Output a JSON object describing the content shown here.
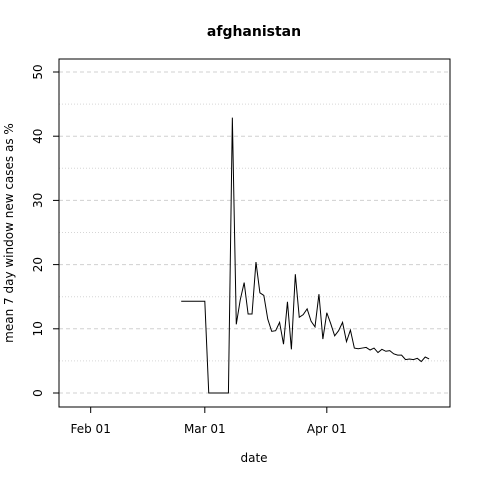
{
  "chart_data": {
    "type": "line",
    "title": "afghanistan",
    "xlabel": "date",
    "ylabel": "mean  7  day window new cases as %",
    "xlim": [
      "2020-01-27",
      "2020-04-29"
    ],
    "ylim": [
      0,
      50
    ],
    "x_ticks": [
      {
        "date": "2020-02-01",
        "label": "Feb 01"
      },
      {
        "date": "2020-03-01",
        "label": "Mar 01"
      },
      {
        "date": "2020-04-01",
        "label": "Apr 01"
      }
    ],
    "y_ticks": [
      0,
      10,
      20,
      30,
      40,
      50
    ],
    "y_minor_ticks": [
      5,
      15,
      25,
      35,
      45
    ],
    "grid": true,
    "series": [
      {
        "x": [
          "2020-02-24",
          "2020-02-25",
          "2020-02-26",
          "2020-02-27",
          "2020-02-28",
          "2020-02-29",
          "2020-03-01",
          "2020-03-02",
          "2020-03-03",
          "2020-03-04",
          "2020-03-05",
          "2020-03-06",
          "2020-03-07",
          "2020-03-08",
          "2020-03-09",
          "2020-03-10",
          "2020-03-11",
          "2020-03-12",
          "2020-03-13",
          "2020-03-14",
          "2020-03-15",
          "2020-03-16",
          "2020-03-17",
          "2020-03-18",
          "2020-03-19",
          "2020-03-20",
          "2020-03-21",
          "2020-03-22",
          "2020-03-23",
          "2020-03-24",
          "2020-03-25",
          "2020-03-26",
          "2020-03-27",
          "2020-03-28",
          "2020-03-29",
          "2020-03-30",
          "2020-03-31",
          "2020-04-01",
          "2020-04-02",
          "2020-04-03",
          "2020-04-04",
          "2020-04-05",
          "2020-04-06",
          "2020-04-07",
          "2020-04-08",
          "2020-04-09",
          "2020-04-10",
          "2020-04-11",
          "2020-04-12",
          "2020-04-13",
          "2020-04-14",
          "2020-04-15",
          "2020-04-16",
          "2020-04-17",
          "2020-04-18",
          "2020-04-19",
          "2020-04-20",
          "2020-04-21",
          "2020-04-22",
          "2020-04-23",
          "2020-04-24",
          "2020-04-25",
          "2020-04-26",
          "2020-04-27"
        ],
        "y": [
          14.3,
          14.3,
          14.3,
          14.3,
          14.3,
          14.3,
          14.3,
          0.0,
          0.0,
          0.0,
          0.0,
          0.0,
          0.0,
          42.9,
          10.7,
          14.5,
          17.2,
          12.3,
          12.3,
          20.4,
          15.6,
          15.2,
          11.5,
          9.6,
          9.7,
          11.0,
          7.6,
          14.2,
          6.8,
          18.5,
          11.8,
          12.2,
          13.1,
          11.2,
          10.3,
          15.4,
          8.4,
          12.5,
          10.8,
          8.9,
          9.7,
          11.0,
          8.0,
          9.8,
          7.0,
          6.9,
          7.0,
          7.1,
          6.7,
          7.0,
          6.3,
          6.8,
          6.5,
          6.6,
          6.1,
          5.9,
          5.9,
          5.2,
          5.3,
          5.2,
          5.4,
          4.9,
          5.6,
          5.3
        ]
      }
    ]
  }
}
